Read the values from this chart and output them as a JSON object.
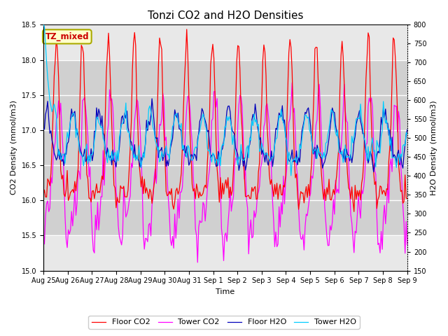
{
  "title": "Tonzi CO2 and H2O Densities",
  "xlabel": "Time",
  "ylabel_left": "CO2 Density (mmol/m3)",
  "ylabel_right": "H2O Density (mmol/m3)",
  "ylim_left": [
    15.0,
    18.5
  ],
  "ylim_right": [
    150,
    800
  ],
  "yticks_left": [
    15.0,
    15.5,
    16.0,
    16.5,
    17.0,
    17.5,
    18.0,
    18.5
  ],
  "yticks_right": [
    150,
    200,
    250,
    300,
    350,
    400,
    450,
    500,
    550,
    600,
    650,
    700,
    750,
    800
  ],
  "x_tick_labels": [
    "Aug 25",
    "Aug 26",
    "Aug 27",
    "Aug 28",
    "Aug 29",
    "Aug 30",
    "Aug 31",
    "Sep 1",
    "Sep 2",
    "Sep 3",
    "Sep 4",
    "Sep 5",
    "Sep 6",
    "Sep 7",
    "Sep 8",
    "Sep 9"
  ],
  "n_points": 336,
  "shaded_region_low": 15.5,
  "shaded_region_high": 18.0,
  "annotation_text": "TZ_mixed",
  "annotation_bg": "#ffffcc",
  "annotation_border": "#aaaa00",
  "annotation_text_color": "#cc0000",
  "floor_co2_color": "#ff0000",
  "tower_co2_color": "#ff00ff",
  "floor_h2o_color": "#0000bb",
  "tower_h2o_color": "#00ccff",
  "legend_labels": [
    "Floor CO2",
    "Tower CO2",
    "Floor H2O",
    "Tower H2O"
  ],
  "plot_bg_color": "#e8e8e8",
  "shaded_color": "#d0d0d0",
  "grid_color": "#ffffff",
  "figsize": [
    6.4,
    4.8
  ],
  "dpi": 100,
  "title_fontsize": 11,
  "label_fontsize": 8,
  "tick_fontsize": 7,
  "legend_fontsize": 8
}
